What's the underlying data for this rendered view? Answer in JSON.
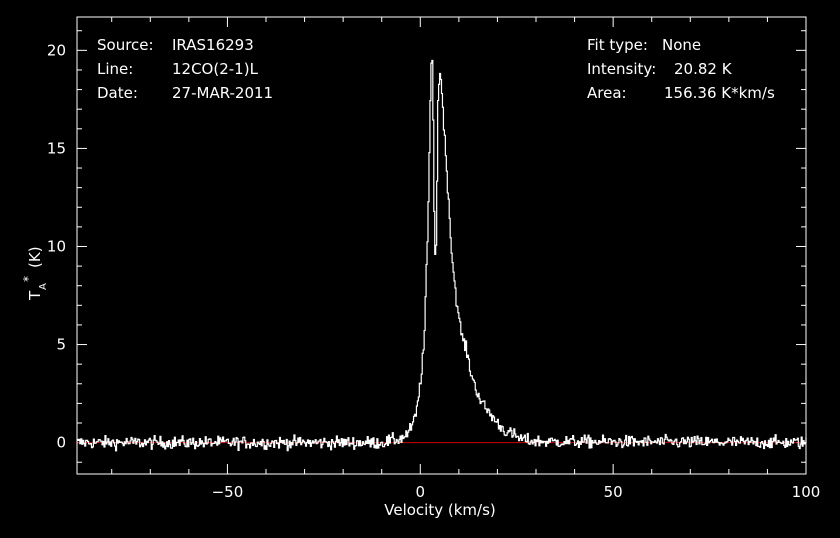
{
  "colors": {
    "background": "#000000",
    "foreground": "#ffffff",
    "baseline": "#cc0000"
  },
  "header": {
    "source_label": "Source:",
    "source_value": "IRAS16293",
    "line_label": "Line:",
    "line_value": "12CO(2-1)L",
    "date_label": "Date:",
    "date_value": "27-MAR-2011",
    "fit_label": "Fit type:",
    "fit_value": "None",
    "intensity_label": "Intensity:",
    "intensity_value": "20.82 K",
    "area_label": "Area:",
    "area_value": "156.36 K*km/s"
  },
  "chart_data": {
    "type": "line",
    "xlabel": "Velocity (km/s)",
    "ylabel_main": "T",
    "ylabel_sub": "A",
    "ylabel_sup": "*",
    "ylabel_unit": "(K)",
    "xlim": [
      -89,
      100
    ],
    "ylim": [
      -1.6,
      21.7
    ],
    "x_ticks": [
      -50,
      0,
      50,
      100
    ],
    "x_tick_labels": [
      "−50",
      "0",
      "50",
      "100"
    ],
    "y_ticks": [
      0,
      5,
      10,
      15,
      20
    ],
    "y_tick_labels": [
      "0",
      "5",
      "10",
      "15",
      "20"
    ],
    "grid": false,
    "baseline_y": 0,
    "series": [
      {
        "x": [
          -89,
          -10,
          -5,
          -3,
          -2,
          -1,
          0,
          1,
          1.5,
          2,
          2.5,
          3,
          3.3,
          3.6,
          4,
          4.3,
          4.6,
          5,
          5.3,
          5.7,
          6,
          6.5,
          7,
          7.5,
          8,
          9,
          10,
          11,
          12,
          13,
          14,
          16,
          18,
          20,
          22,
          24,
          26,
          28,
          32,
          100
        ],
        "y": [
          0,
          0,
          0.2,
          0.5,
          0.9,
          1.5,
          3,
          5,
          8,
          11,
          16,
          20.8,
          18,
          12,
          8.6,
          12,
          17.5,
          18.7,
          18.6,
          18,
          16.5,
          15,
          13.5,
          12,
          10,
          8,
          6.3,
          5.3,
          4.7,
          3.7,
          3,
          2,
          1.5,
          1,
          0.6,
          0.4,
          0.2,
          0.1,
          0.05,
          0
        ],
        "noise_rms": 0.16
      }
    ]
  }
}
